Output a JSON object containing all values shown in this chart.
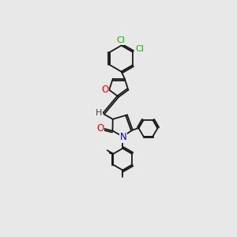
{
  "background_color": "#e8e8e8",
  "bond_color": "#1a1a1a",
  "lw": 1.3,
  "atom_colors": {
    "O": "#ff0000",
    "N": "#0000ee",
    "Cl": "#00bb00",
    "H": "#444444"
  },
  "figsize": [
    3.0,
    3.0
  ],
  "dpi": 100
}
